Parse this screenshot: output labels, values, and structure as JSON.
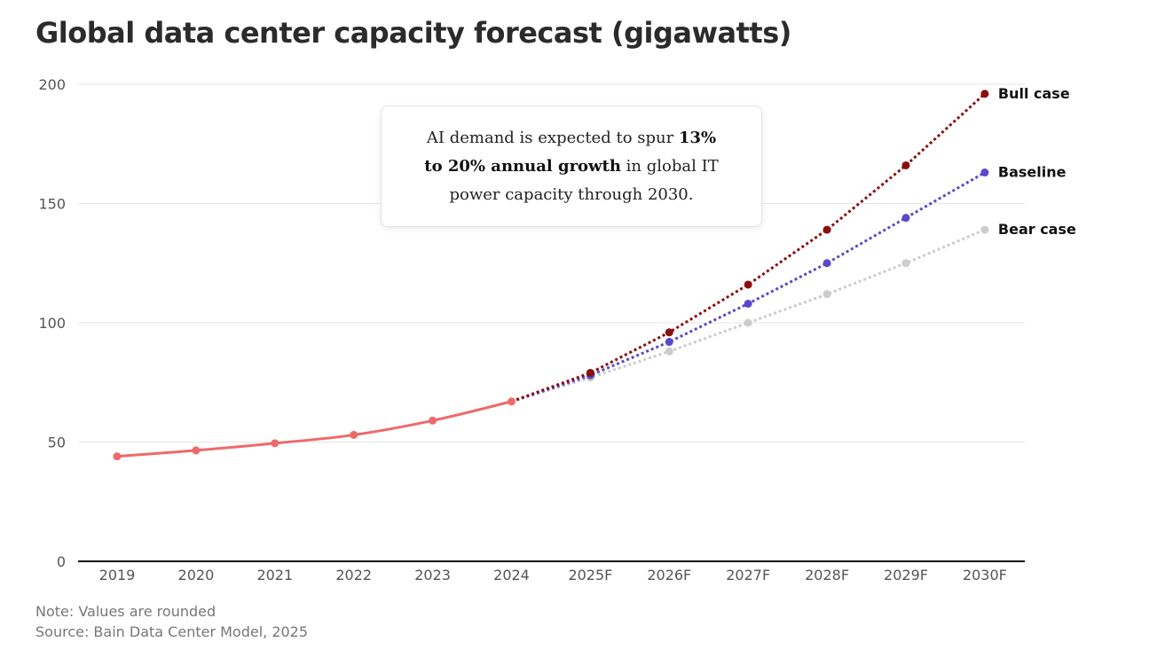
{
  "title": "Global data center capacity forecast (gigawatts)",
  "callout": {
    "pre": "AI demand is expected to spur ",
    "bold": "13% to 20% annual growth",
    "post": " in global IT power capacity through 2030."
  },
  "note": "Note: Values are rounded",
  "source": "Source: Bain Data Center Model, 2025",
  "colors": {
    "historical": "#ee6a6a",
    "bull": "#8b0e0e",
    "baseline": "#5b48c8",
    "bear": "#cccccc",
    "grid": "#e6e6e6",
    "axis": "#111111"
  },
  "chart_data": {
    "type": "line",
    "title": "Global data center capacity forecast (gigawatts)",
    "xlabel": "",
    "ylabel": "",
    "categories": [
      "2019",
      "2020",
      "2021",
      "2022",
      "2023",
      "2024",
      "2025F",
      "2026F",
      "2027F",
      "2028F",
      "2029F",
      "2030F"
    ],
    "ylim": [
      0,
      200
    ],
    "yticks": [
      0,
      50,
      100,
      150,
      200
    ],
    "grid": true,
    "legend": "inline-right",
    "series": [
      {
        "key": "historical",
        "name": "",
        "style": "solid",
        "values": [
          44,
          46.5,
          49.5,
          53,
          59,
          67,
          null,
          null,
          null,
          null,
          null,
          null
        ]
      },
      {
        "key": "bull",
        "name": "Bull case",
        "style": "dotted",
        "values": [
          null,
          null,
          null,
          null,
          null,
          67,
          79,
          96,
          116,
          139,
          166,
          196
        ]
      },
      {
        "key": "baseline",
        "name": "Baseline",
        "style": "dotted",
        "values": [
          null,
          null,
          null,
          null,
          null,
          67,
          78,
          92,
          108,
          125,
          144,
          163
        ]
      },
      {
        "key": "bear",
        "name": "Bear case",
        "style": "dotted",
        "values": [
          null,
          null,
          null,
          null,
          null,
          67,
          77,
          88,
          100,
          112,
          125,
          139
        ]
      }
    ]
  }
}
